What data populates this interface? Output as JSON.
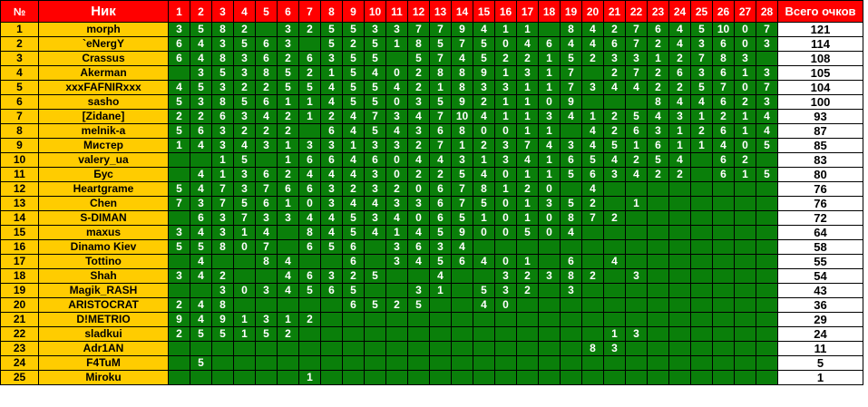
{
  "table": {
    "columns": {
      "num": "№",
      "nick": "Ник",
      "total": "Всего очков"
    },
    "round_numbers": [
      "1",
      "2",
      "3",
      "4",
      "5",
      "6",
      "7",
      "8",
      "9",
      "10",
      "11",
      "12",
      "13",
      "14",
      "15",
      "16",
      "17",
      "18",
      "19",
      "20",
      "21",
      "22",
      "23",
      "24",
      "25",
      "26",
      "27",
      "28"
    ],
    "rows": [
      {
        "rank": "1",
        "nick": "morph",
        "scores": [
          "3",
          "5",
          "8",
          "2",
          "",
          "3",
          "2",
          "5",
          "5",
          "3",
          "3",
          "7",
          "7",
          "9",
          "4",
          "1",
          "1",
          "",
          "8",
          "4",
          "2",
          "7",
          "6",
          "4",
          "5",
          "10",
          "0",
          "7"
        ],
        "total": "121"
      },
      {
        "rank": "2",
        "nick": "`eNergY",
        "scores": [
          "6",
          "4",
          "3",
          "5",
          "6",
          "3",
          "",
          "5",
          "2",
          "5",
          "1",
          "8",
          "5",
          "7",
          "5",
          "0",
          "4",
          "6",
          "4",
          "4",
          "6",
          "7",
          "2",
          "4",
          "3",
          "6",
          "0",
          "3"
        ],
        "total": "114"
      },
      {
        "rank": "3",
        "nick": "Crassus",
        "scores": [
          "6",
          "4",
          "8",
          "3",
          "6",
          "2",
          "6",
          "3",
          "5",
          "5",
          "",
          "5",
          "7",
          "4",
          "5",
          "2",
          "2",
          "1",
          "5",
          "2",
          "3",
          "3",
          "1",
          "2",
          "7",
          "8",
          "3",
          ""
        ],
        "total": "108"
      },
      {
        "rank": "4",
        "nick": "Akerman",
        "scores": [
          "",
          "3",
          "5",
          "3",
          "8",
          "5",
          "2",
          "1",
          "5",
          "4",
          "0",
          "2",
          "8",
          "8",
          "9",
          "1",
          "3",
          "1",
          "7",
          "",
          "2",
          "7",
          "2",
          "6",
          "3",
          "6",
          "1",
          "3"
        ],
        "total": "105"
      },
      {
        "rank": "5",
        "nick": "xxxFAFNIRxxx",
        "scores": [
          "4",
          "5",
          "3",
          "2",
          "2",
          "5",
          "5",
          "4",
          "5",
          "5",
          "4",
          "2",
          "1",
          "8",
          "3",
          "3",
          "1",
          "1",
          "7",
          "3",
          "4",
          "4",
          "2",
          "2",
          "5",
          "7",
          "0",
          "7"
        ],
        "total": "104"
      },
      {
        "rank": "6",
        "nick": "sasho",
        "scores": [
          "5",
          "3",
          "8",
          "5",
          "6",
          "1",
          "1",
          "4",
          "5",
          "5",
          "0",
          "3",
          "5",
          "9",
          "2",
          "1",
          "1",
          "0",
          "9",
          "",
          "",
          "",
          "8",
          "4",
          "4",
          "6",
          "2",
          "3"
        ],
        "total": "100"
      },
      {
        "rank": "7",
        "nick": "[Zidane]",
        "scores": [
          "2",
          "2",
          "6",
          "3",
          "4",
          "2",
          "1",
          "2",
          "4",
          "7",
          "3",
          "4",
          "7",
          "10",
          "4",
          "1",
          "1",
          "3",
          "4",
          "1",
          "2",
          "5",
          "4",
          "3",
          "1",
          "2",
          "1",
          "4"
        ],
        "total": "93"
      },
      {
        "rank": "8",
        "nick": "melnik-a",
        "scores": [
          "5",
          "6",
          "3",
          "2",
          "2",
          "2",
          "",
          "6",
          "4",
          "5",
          "4",
          "3",
          "6",
          "8",
          "0",
          "0",
          "1",
          "1",
          "",
          "4",
          "2",
          "6",
          "3",
          "1",
          "2",
          "6",
          "1",
          "4"
        ],
        "total": "87"
      },
      {
        "rank": "9",
        "nick": "Мистер",
        "scores": [
          "1",
          "4",
          "3",
          "4",
          "3",
          "1",
          "3",
          "3",
          "1",
          "3",
          "3",
          "2",
          "7",
          "1",
          "2",
          "3",
          "7",
          "4",
          "3",
          "4",
          "5",
          "1",
          "6",
          "1",
          "1",
          "4",
          "0",
          "5"
        ],
        "total": "85"
      },
      {
        "rank": "10",
        "nick": "valery_ua",
        "scores": [
          "",
          "",
          "1",
          "5",
          "",
          "1",
          "6",
          "6",
          "4",
          "6",
          "0",
          "4",
          "4",
          "3",
          "1",
          "3",
          "4",
          "1",
          "6",
          "5",
          "4",
          "2",
          "5",
          "4",
          "",
          "6",
          "2",
          ""
        ],
        "total": "83"
      },
      {
        "rank": "11",
        "nick": "Бус",
        "scores": [
          "",
          "4",
          "1",
          "3",
          "6",
          "2",
          "4",
          "4",
          "4",
          "3",
          "0",
          "2",
          "2",
          "5",
          "4",
          "0",
          "1",
          "1",
          "5",
          "6",
          "3",
          "4",
          "2",
          "2",
          "",
          "6",
          "1",
          "5"
        ],
        "total": "80"
      },
      {
        "rank": "12",
        "nick": "Heartgrame",
        "scores": [
          "5",
          "4",
          "7",
          "3",
          "7",
          "6",
          "6",
          "3",
          "2",
          "3",
          "2",
          "0",
          "6",
          "7",
          "8",
          "1",
          "2",
          "0",
          "",
          "4",
          "",
          "",
          "",
          "",
          "",
          "",
          "",
          ""
        ],
        "total": "76"
      },
      {
        "rank": "13",
        "nick": "Chen",
        "scores": [
          "7",
          "3",
          "7",
          "5",
          "6",
          "1",
          "0",
          "3",
          "4",
          "4",
          "3",
          "3",
          "6",
          "7",
          "5",
          "0",
          "1",
          "3",
          "5",
          "2",
          "",
          "1",
          "",
          "",
          "",
          "",
          "",
          ""
        ],
        "total": "76"
      },
      {
        "rank": "14",
        "nick": "S-DIMAN",
        "scores": [
          "",
          "6",
          "3",
          "7",
          "3",
          "3",
          "4",
          "4",
          "5",
          "3",
          "4",
          "0",
          "6",
          "5",
          "1",
          "0",
          "1",
          "0",
          "8",
          "7",
          "2",
          "",
          "",
          "",
          "",
          "",
          "",
          ""
        ],
        "total": "72"
      },
      {
        "rank": "15",
        "nick": "maxus",
        "scores": [
          "3",
          "4",
          "3",
          "1",
          "4",
          "",
          "8",
          "4",
          "5",
          "4",
          "1",
          "4",
          "5",
          "9",
          "0",
          "0",
          "5",
          "0",
          "4",
          "",
          "",
          "",
          "",
          "",
          "",
          "",
          "",
          ""
        ],
        "total": "64"
      },
      {
        "rank": "16",
        "nick": "Dinamo Kiev",
        "scores": [
          "5",
          "5",
          "8",
          "0",
          "7",
          "",
          "6",
          "5",
          "6",
          "",
          "3",
          "6",
          "3",
          "4",
          "",
          "",
          "",
          "",
          "",
          "",
          "",
          "",
          "",
          "",
          "",
          "",
          "",
          ""
        ],
        "total": "58"
      },
      {
        "rank": "17",
        "nick": "Tottino",
        "scores": [
          "",
          "4",
          "",
          "",
          "8",
          "4",
          "",
          "",
          "6",
          "",
          "3",
          "4",
          "5",
          "6",
          "4",
          "0",
          "1",
          "",
          "6",
          "",
          "4",
          "",
          "",
          "",
          "",
          "",
          "",
          ""
        ],
        "total": "55"
      },
      {
        "rank": "18",
        "nick": "Shah",
        "scores": [
          "3",
          "4",
          "2",
          "",
          "",
          "4",
          "6",
          "3",
          "2",
          "5",
          "",
          "",
          "4",
          "",
          "",
          "3",
          "2",
          "3",
          "8",
          "2",
          "",
          "3",
          "",
          "",
          "",
          "",
          "",
          ""
        ],
        "total": "54"
      },
      {
        "rank": "19",
        "nick": "Magik_RASH",
        "scores": [
          "",
          "",
          "3",
          "0",
          "3",
          "4",
          "5",
          "6",
          "5",
          "",
          "",
          "3",
          "1",
          "",
          "5",
          "3",
          "2",
          "",
          "3",
          "",
          "",
          "",
          "",
          "",
          "",
          "",
          "",
          ""
        ],
        "total": "43"
      },
      {
        "rank": "20",
        "nick": "ARISTOCRAT",
        "scores": [
          "2",
          "4",
          "8",
          "",
          "",
          "",
          "",
          "",
          "6",
          "5",
          "2",
          "5",
          "",
          "",
          "4",
          "0",
          "",
          "",
          "",
          "",
          "",
          "",
          "",
          "",
          "",
          "",
          "",
          ""
        ],
        "total": "36"
      },
      {
        "rank": "21",
        "nick": "D!METRIO",
        "scores": [
          "9",
          "4",
          "9",
          "1",
          "3",
          "1",
          "2",
          "",
          "",
          "",
          "",
          "",
          "",
          "",
          "",
          "",
          "",
          "",
          "",
          "",
          "",
          "",
          "",
          "",
          "",
          "",
          "",
          ""
        ],
        "total": "29"
      },
      {
        "rank": "22",
        "nick": "sladkui",
        "scores": [
          "2",
          "5",
          "5",
          "1",
          "5",
          "2",
          "",
          "",
          "",
          "",
          "",
          "",
          "",
          "",
          "",
          "",
          "",
          "",
          "",
          "",
          "1",
          "3",
          "",
          "",
          "",
          "",
          "",
          ""
        ],
        "total": "24"
      },
      {
        "rank": "23",
        "nick": "Adr1AN",
        "scores": [
          "",
          "",
          "",
          "",
          "",
          "",
          "",
          "",
          "",
          "",
          "",
          "",
          "",
          "",
          "",
          "",
          "",
          "",
          "",
          "8",
          "3",
          "",
          "",
          "",
          "",
          "",
          "",
          ""
        ],
        "total": "11"
      },
      {
        "rank": "24",
        "nick": "F4TuM",
        "scores": [
          "",
          "5",
          "",
          "",
          "",
          "",
          "",
          "",
          "",
          "",
          "",
          "",
          "",
          "",
          "",
          "",
          "",
          "",
          "",
          "",
          "",
          "",
          "",
          "",
          "",
          "",
          "",
          ""
        ],
        "total": "5"
      },
      {
        "rank": "25",
        "nick": "Miroku",
        "scores": [
          "",
          "",
          "",
          "",
          "",
          "",
          "1",
          "",
          "",
          "",
          "",
          "",
          "",
          "",
          "",
          "",
          "",
          "",
          "",
          "",
          "",
          "",
          "",
          "",
          "",
          "",
          "",
          ""
        ],
        "total": "1"
      }
    ]
  },
  "colors": {
    "header_bg": "#ff0000",
    "header_text": "#ffffff",
    "rank_nick_bg": "#ffcc00",
    "rank_nick_text": "#000000",
    "score_bg": "#0a7f0a",
    "score_text": "#ffffff",
    "total_bg": "#ffffff",
    "total_text": "#000000",
    "grid": "#000000"
  }
}
